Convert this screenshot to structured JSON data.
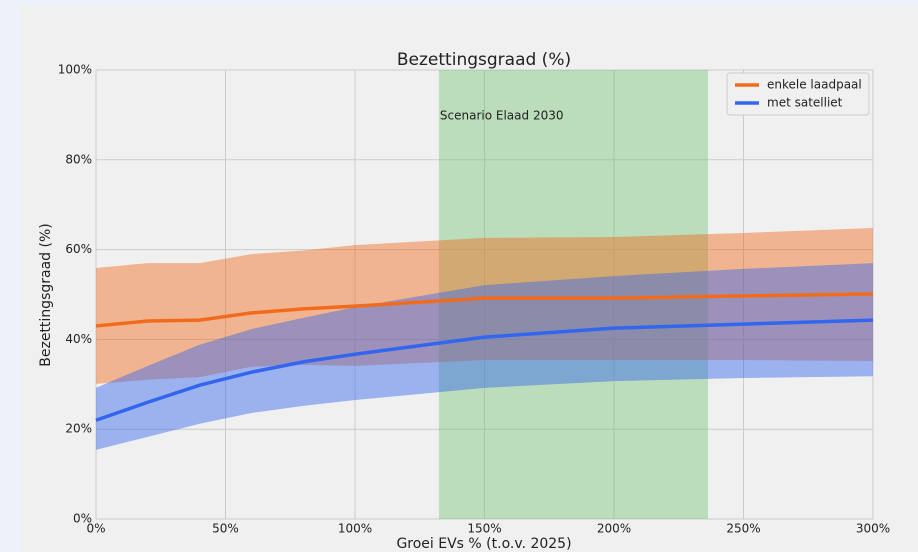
{
  "chart_data": {
    "type": "line",
    "title": "Bezettingsgraad (%)",
    "x_label": "Groei EVs % (t.o.v. 2025)",
    "y_label": "Bezettingsgraad (%)",
    "x": [
      0,
      20,
      40,
      60,
      80,
      100,
      150,
      200,
      250,
      300
    ],
    "series": [
      {
        "name": "enkele laadpaal",
        "color": "#f26b1d",
        "values": [
          43.0,
          44.1,
          44.3,
          45.9,
          46.8,
          47.4,
          49.2,
          49.2,
          49.7,
          50.1
        ],
        "upper": [
          55.9,
          57.0,
          57.0,
          59.0,
          59.8,
          61.0,
          62.6,
          62.8,
          63.7,
          64.8
        ],
        "lower": [
          30.1,
          31.0,
          31.6,
          33.9,
          34.3,
          34.1,
          35.4,
          35.4,
          35.4,
          35.2
        ]
      },
      {
        "name": "met satelliet",
        "color": "#3366ee",
        "values": [
          22.0,
          26.0,
          29.8,
          32.7,
          35.0,
          36.7,
          40.5,
          42.5,
          43.4,
          44.3
        ],
        "upper": [
          29.2,
          34.1,
          38.8,
          42.3,
          44.8,
          47.2,
          52.1,
          54.1,
          55.7,
          57.0
        ],
        "lower": [
          15.4,
          18.3,
          21.2,
          23.6,
          25.2,
          26.5,
          29.2,
          30.7,
          31.4,
          31.8
        ]
      }
    ],
    "span": {
      "xmin": 132.4,
      "xmax": 236.3,
      "color": "#7ac67a",
      "label": "Scenario Elaad 2030"
    },
    "xlim": [
      0,
      300
    ],
    "ylim": [
      0,
      100
    ],
    "xticks": [
      {
        "value": 0,
        "label": "0%"
      },
      {
        "value": 50,
        "label": "50%"
      },
      {
        "value": 100,
        "label": "100%"
      },
      {
        "value": 150,
        "label": "150%"
      },
      {
        "value": 200,
        "label": "200%"
      },
      {
        "value": 250,
        "label": "250%"
      },
      {
        "value": 300,
        "label": "300%"
      }
    ],
    "yticks": [
      {
        "value": 0,
        "label": "0%"
      },
      {
        "value": 20,
        "label": "20%"
      },
      {
        "value": 40,
        "label": "40%"
      },
      {
        "value": 60,
        "label": "60%"
      },
      {
        "value": 80,
        "label": "80%"
      },
      {
        "value": 100,
        "label": "100%"
      }
    ],
    "grid": true,
    "legend": "upper right"
  }
}
